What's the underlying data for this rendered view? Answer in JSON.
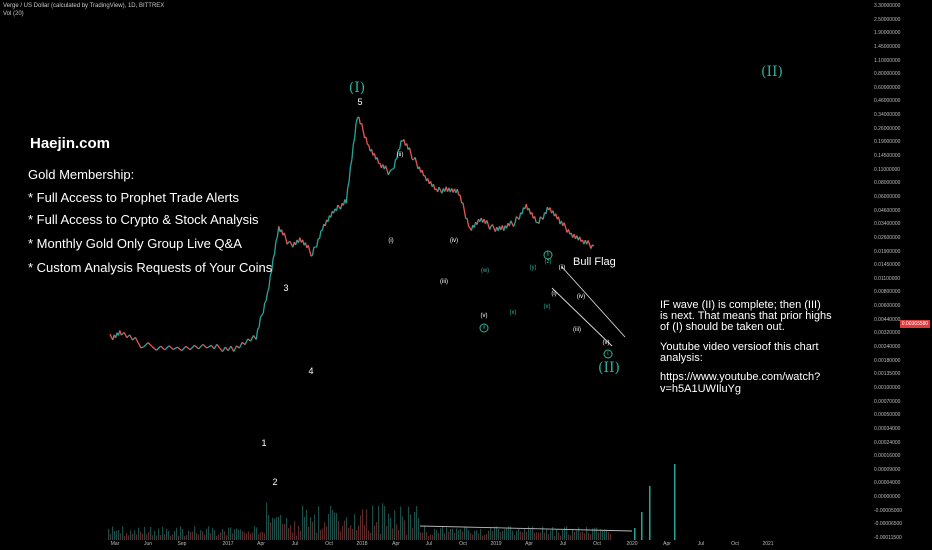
{
  "header": {
    "title": "Verge / US Dollar (calculated by TradingView), 1D, BITTREX",
    "indicator": "Vol (20)"
  },
  "promo": {
    "site": "Haejin.com",
    "lines": [
      "Gold Membership:",
      "* Full Access to Prophet Trade Alerts",
      "* Full Access to Crypto & Stock Analysis",
      "* Monthly Gold Only Group Live Q&A",
      "* Custom Analysis Requests of Your Coins"
    ]
  },
  "note": {
    "l1": "IF wave (II) is complete; then (III)",
    "l2": "is next. That means that prior highs",
    "l3": "of (I) should be taken out.",
    "l4": "Youtube video versioof this chart",
    "l5": "analysis:",
    "l6": "https://www.youtube.com/watch?v=h5A1UWIluYg"
  },
  "bull_flag": "Bull Flag",
  "colors": {
    "up": "#26a69a",
    "down": "#ef5350",
    "price_tag": "#e03a3a",
    "wave_label": "#2bb39a"
  },
  "chart_data": {
    "type": "line",
    "title": "Verge / US Dollar (calculated by TradingView), 1D, BITTREX",
    "log_scale": true,
    "grid": false,
    "x_ticks": [
      "Mar",
      "Jun",
      "Sep",
      "2017",
      "Apr",
      "Jul",
      "Oct",
      "2018",
      "Apr",
      "Jul",
      "Oct",
      "2019",
      "Apr",
      "Jul",
      "Oct",
      "2020",
      "Apr",
      "Jul",
      "Oct",
      "2021"
    ],
    "y_ticks": [
      "3.30000000",
      "2.50000000",
      "1.90000000",
      "1.45000000",
      "1.10000000",
      "0.80000000",
      "0.60000000",
      "0.46000000",
      "0.34000000",
      "0.26000000",
      "0.19000000",
      "0.14500000",
      "0.11000000",
      "0.08000000",
      "0.06000000",
      "0.04600000",
      "0.03400000",
      "0.02600000",
      "0.01900000",
      "0.01450000",
      "0.01100000",
      "0.00800000",
      "0.00600000",
      "0.00440000",
      "0.00320000",
      "0.00240000",
      "0.00180000",
      "0.00135000",
      "0.00100000",
      "0.00070000",
      "0.00050000",
      "0.00034000",
      "0.00024000",
      "0.00016000",
      "0.00009000",
      "0.00004000",
      "0.00000000",
      "-0.00005000",
      "-0.00006500",
      "-0.00011500"
    ],
    "current_price": "0.00365580",
    "price_path": {
      "x": [
        "2016-03",
        "2016-04",
        "2016-06",
        "2016-09",
        "2016-12",
        "2017-02",
        "2017-04",
        "2017-05",
        "2017-06",
        "2017-07",
        "2017-08",
        "2017-09",
        "2017-10",
        "2017-11",
        "2017-12",
        "2018-01",
        "2018-02",
        "2018-03",
        "2018-04",
        "2018-05",
        "2018-06",
        "2018-07",
        "2018-08",
        "2018-09",
        "2018-10",
        "2018-11",
        "2018-12",
        "2019-01",
        "2019-02",
        "2019-03",
        "2019-04",
        "2019-05",
        "2019-06",
        "2019-07",
        "2019-08",
        "2019-09",
        "2019-10"
      ],
      "y": [
        0.0001,
        0.00012,
        7.5e-05,
        7e-05,
        7e-05,
        7e-05,
        0.0001,
        0.00048,
        0.0045,
        0.0025,
        0.003,
        0.0018,
        0.005,
        0.008,
        0.012,
        0.22,
        0.08,
        0.04,
        0.03,
        0.1,
        0.05,
        0.027,
        0.016,
        0.018,
        0.015,
        0.0045,
        0.006,
        0.0045,
        0.0045,
        0.0055,
        0.01,
        0.005,
        0.0095,
        0.0055,
        0.0038,
        0.0028,
        0.0024
      ]
    },
    "waves": [
      {
        "label": "1",
        "x": "2017-04"
      },
      {
        "label": "2",
        "x": "2017-04"
      },
      {
        "label": "3",
        "x": "2017-06"
      },
      {
        "label": "4",
        "x": "2017-09"
      },
      {
        "label": "5",
        "x": "2018-01"
      },
      {
        "label": "(I)",
        "x": "2018-01"
      },
      {
        "label": "(i)",
        "x": "2018-03"
      },
      {
        "label": "(ii)",
        "x": "2018-04"
      },
      {
        "label": "(iii)",
        "x": "2018-08"
      },
      {
        "label": "(iv)",
        "x": "2018-08"
      },
      {
        "label": "(v)",
        "x": "2018-11"
      },
      {
        "label": "(w)",
        "x": "2018-11"
      },
      {
        "label": "(x)",
        "x": "2019-02"
      },
      {
        "label": "(y)",
        "x": "2019-04"
      },
      {
        "label": "(z)",
        "x": "2019-05"
      },
      {
        "label": "(i)",
        "x": "2019-06"
      },
      {
        "label": "(ii)",
        "x": "2019-06"
      },
      {
        "label": "(iii)",
        "x": "2019-08"
      },
      {
        "label": "(iv)",
        "x": "2019-08"
      },
      {
        "label": "(v)",
        "x": "2019-10"
      },
      {
        "label": "a",
        "x": "2018-11"
      },
      {
        "label": "b",
        "x": "2019-05"
      },
      {
        "label": "c",
        "x": "2019-10"
      },
      {
        "label": "(x)",
        "x": "2019-05"
      },
      {
        "label": "(II)",
        "x": "2019-10"
      },
      {
        "label": "(II)",
        "x": "2020-05"
      }
    ]
  }
}
